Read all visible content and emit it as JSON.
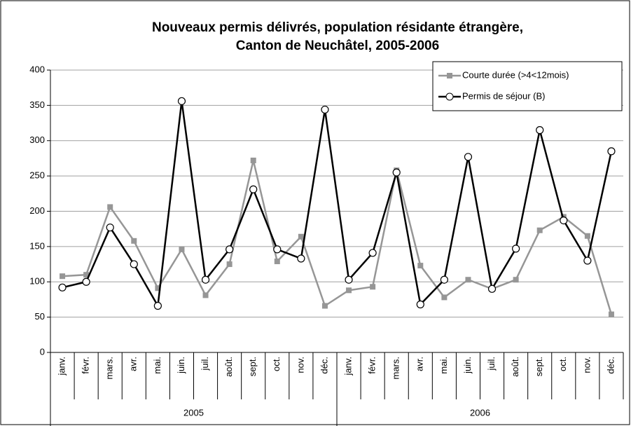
{
  "chart_data": {
    "type": "line",
    "title": "Nouveaux permis délivrés, population résidante étrangère,",
    "subtitle": "Canton de Neuchâtel, 2005-2006",
    "groups": [
      {
        "name": "2005",
        "categories": [
          "janv.",
          "févr.",
          "mars.",
          "avr.",
          "mai.",
          "juin.",
          "juil.",
          "août.",
          "sept.",
          "oct.",
          "nov.",
          "déc."
        ]
      },
      {
        "name": "2006",
        "categories": [
          "janv.",
          "févr.",
          "mars.",
          "avr.",
          "mai.",
          "juin.",
          "juil.",
          "août.",
          "sept.",
          "oct.",
          "nov.",
          "déc."
        ]
      }
    ],
    "series": [
      {
        "name": "Courte durée (>4<12mois)",
        "color": "#969696",
        "marker": "square",
        "values": [
          108,
          110,
          206,
          158,
          91,
          146,
          81,
          125,
          272,
          129,
          164,
          66,
          88,
          93,
          258,
          123,
          78,
          103,
          90,
          103,
          173,
          192,
          165,
          54
        ]
      },
      {
        "name": "Permis de séjour (B)",
        "color": "#000000",
        "marker": "circle",
        "values": [
          92,
          100,
          177,
          125,
          66,
          356,
          103,
          146,
          231,
          146,
          133,
          344,
          103,
          141,
          255,
          68,
          103,
          277,
          90,
          147,
          315,
          187,
          130,
          285
        ]
      }
    ],
    "ylim": [
      0,
      400
    ],
    "yticks": [
      0,
      50,
      100,
      150,
      200,
      250,
      300,
      350,
      400
    ],
    "grid": true,
    "legend": "top-right"
  }
}
